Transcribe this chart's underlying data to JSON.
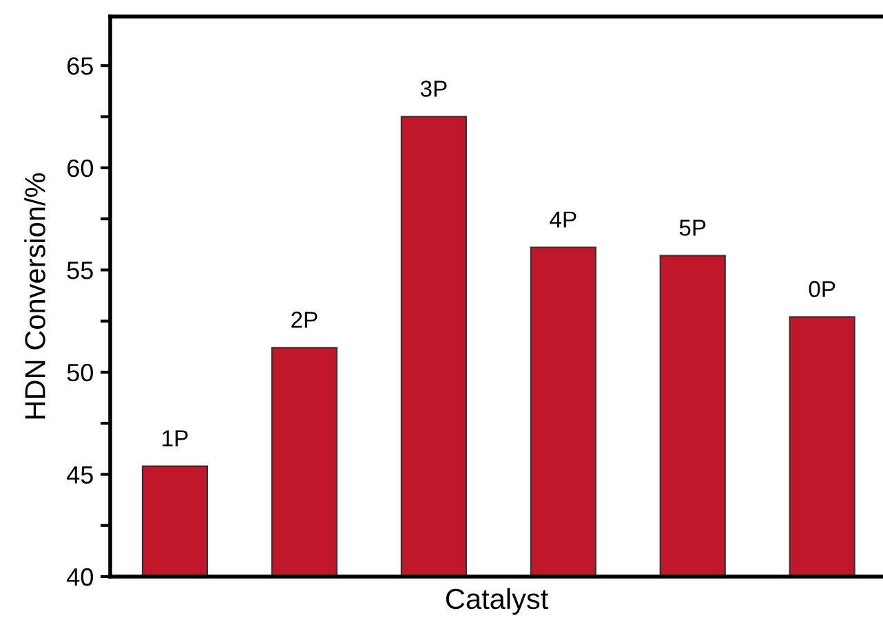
{
  "chart_data": {
    "type": "bar",
    "xlabel": "Catalyst",
    "ylabel": "HDN Conversion/%",
    "categories": [
      "1P",
      "2P",
      "3P",
      "4P",
      "5P",
      "0P"
    ],
    "values": [
      45.4,
      51.2,
      62.5,
      56.1,
      55.7,
      52.7
    ],
    "color": "#c0172a",
    "ylim": [
      40,
      67.4
    ],
    "yticks": [
      40,
      {
        "value": 42.5,
        "label": null
      },
      45,
      {
        "value": 47.5,
        "label": null
      },
      50,
      {
        "value": 52.5,
        "label": null
      },
      55,
      {
        "value": 57.5,
        "label": null
      },
      60,
      {
        "value": 62.5,
        "label": null
      },
      65
    ],
    "grid": false,
    "legend": false
  }
}
